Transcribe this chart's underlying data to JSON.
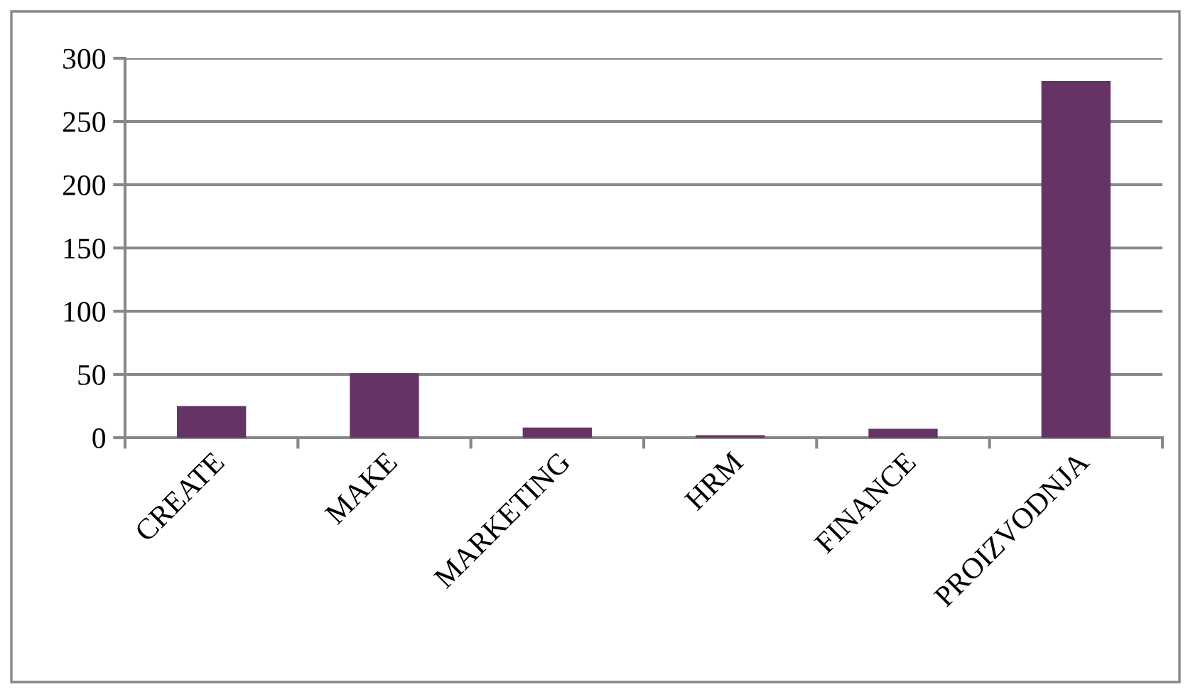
{
  "chart_data": {
    "type": "bar",
    "categories": [
      "CREATE",
      "MAKE",
      "MARKETING",
      "HRM",
      "FINANCE",
      "PROIZVODNJA"
    ],
    "values": [
      25,
      51,
      8,
      2,
      7,
      282
    ],
    "color": "#663366",
    "ylim": [
      0,
      300
    ],
    "yticks": [
      0,
      50,
      100,
      150,
      200,
      250,
      300
    ],
    "grid": "y",
    "legend": false
  }
}
